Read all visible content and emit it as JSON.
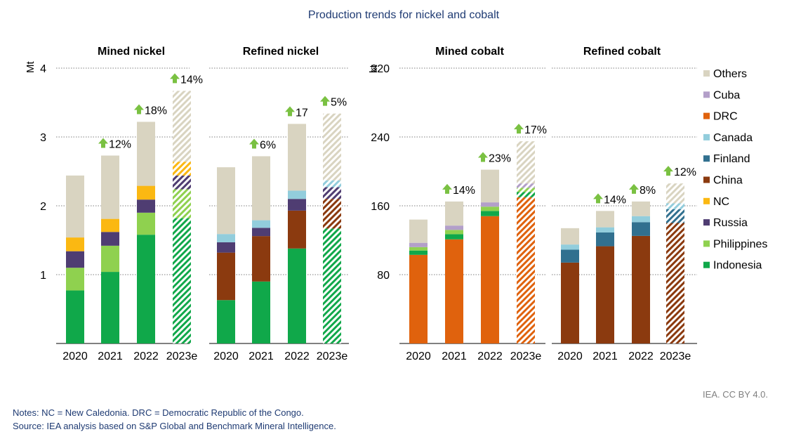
{
  "title": "Production trends for nickel and cobalt",
  "credit": "IEA. CC BY 4.0.",
  "notes": "Notes: NC = New Caledonia. DRC = Democratic Republic of the Congo.",
  "source": "Source: IEA analysis based on S&P Global and Benchmark Mineral Intelligence.",
  "colors": {
    "Others": "#d9d4c1",
    "Cuba": "#b39fc9",
    "DRC": "#e0620d",
    "Canada": "#92cddc",
    "Finland": "#31708f",
    "China": "#8b3a0f",
    "NC": "#fbb812",
    "Russia": "#4f3d72",
    "Philippines": "#8fd14f",
    "Indonesia": "#10a84a",
    "arrow": "#7ac142",
    "gridline": "#7f7f7f"
  },
  "legend": [
    "Others",
    "Cuba",
    "DRC",
    "Canada",
    "Finland",
    "China",
    "NC",
    "Russia",
    "Philippines",
    "Indonesia"
  ],
  "chart_data": [
    {
      "type": "bar",
      "stacked": true,
      "title": "Mined nickel",
      "ylabel": "Mt",
      "ylim": [
        0,
        4
      ],
      "yticks": [
        "1",
        "2",
        "3",
        "4"
      ],
      "categories": [
        "2020",
        "2021",
        "2022",
        "2023e"
      ],
      "estimated": [
        false,
        false,
        false,
        true
      ],
      "growth_labels": [
        "",
        "12%",
        "18%",
        "14%"
      ],
      "series": [
        {
          "name": "Indonesia",
          "values": [
            0.77,
            1.04,
            1.58,
            1.82
          ]
        },
        {
          "name": "Philippines",
          "values": [
            0.33,
            0.38,
            0.32,
            0.42
          ]
        },
        {
          "name": "Russia",
          "values": [
            0.24,
            0.2,
            0.19,
            0.2
          ]
        },
        {
          "name": "NC",
          "values": [
            0.2,
            0.19,
            0.2,
            0.2
          ]
        },
        {
          "name": "Others",
          "values": [
            0.9,
            0.92,
            0.93,
            1.03
          ]
        }
      ]
    },
    {
      "type": "bar",
      "stacked": true,
      "title": "Refined nickel",
      "ylabel": "",
      "ylim": [
        0,
        4
      ],
      "yticks": [],
      "categories": [
        "2020",
        "2021",
        "2022",
        "2023e"
      ],
      "estimated": [
        false,
        false,
        false,
        true
      ],
      "growth_labels": [
        "",
        "6%",
        "17",
        "5%"
      ],
      "series": [
        {
          "name": "Indonesia",
          "values": [
            0.63,
            0.9,
            1.38,
            1.67
          ]
        },
        {
          "name": "China",
          "values": [
            0.69,
            0.66,
            0.55,
            0.43
          ]
        },
        {
          "name": "Russia",
          "values": [
            0.15,
            0.12,
            0.17,
            0.17
          ]
        },
        {
          "name": "Canada",
          "values": [
            0.12,
            0.11,
            0.12,
            0.1
          ]
        },
        {
          "name": "Others",
          "values": [
            0.97,
            0.93,
            0.97,
            0.97
          ]
        }
      ]
    },
    {
      "type": "bar",
      "stacked": true,
      "title": "Mined cobalt",
      "ylabel": "kt",
      "ylim": [
        0,
        320
      ],
      "yticks": [
        "80",
        "160",
        "240",
        "320"
      ],
      "categories": [
        "2020",
        "2021",
        "2022",
        "2023e"
      ],
      "estimated": [
        false,
        false,
        false,
        true
      ],
      "growth_labels": [
        "",
        "14%",
        "23%",
        "17%"
      ],
      "series": [
        {
          "name": "DRC",
          "values": [
            103,
            121,
            148,
            170
          ]
        },
        {
          "name": "Indonesia",
          "values": [
            5,
            6,
            6,
            6
          ]
        },
        {
          "name": "Philippines",
          "values": [
            4,
            5,
            5,
            5
          ]
        },
        {
          "name": "Cuba",
          "values": [
            5,
            5,
            5,
            5
          ]
        },
        {
          "name": "Others",
          "values": [
            27,
            28,
            38,
            49
          ]
        }
      ]
    },
    {
      "type": "bar",
      "stacked": true,
      "title": "Refined cobalt",
      "ylabel": "",
      "ylim": [
        0,
        320
      ],
      "yticks": [],
      "categories": [
        "2020",
        "2021",
        "2022",
        "2023e"
      ],
      "estimated": [
        false,
        false,
        false,
        true
      ],
      "growth_labels": [
        "",
        "14%",
        "8%",
        "12%"
      ],
      "series": [
        {
          "name": "China",
          "values": [
            94,
            113,
            125,
            140
          ]
        },
        {
          "name": "Finland",
          "values": [
            15,
            16,
            16,
            16
          ]
        },
        {
          "name": "Canada",
          "values": [
            6,
            6,
            7,
            7
          ]
        },
        {
          "name": "Others",
          "values": [
            19,
            19,
            17,
            23
          ]
        }
      ]
    }
  ]
}
